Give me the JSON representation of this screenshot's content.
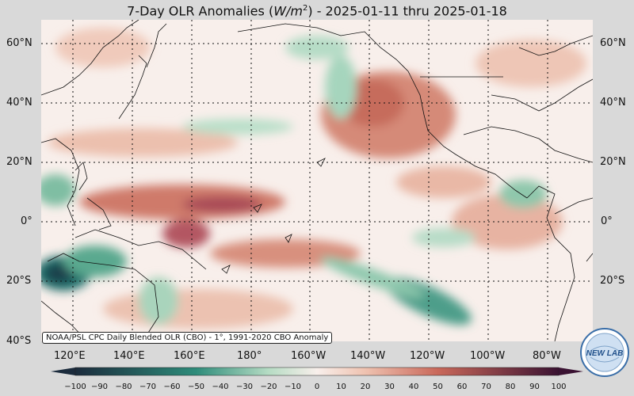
{
  "title": {
    "prefix": "7-Day OLR Anomalies (",
    "units_italic": "W/m",
    "units_sup": "2",
    "suffix": ") - 2025-01-11 thru 2025-01-18"
  },
  "map": {
    "lat_labels_left": [
      "60°N",
      "40°N",
      "20°N",
      "0°",
      "20°S",
      "40°S"
    ],
    "lat_labels_right": [
      "60°N",
      "40°N",
      "20°N",
      "0°",
      "20°S"
    ],
    "lon_labels": [
      "120°E",
      "140°E",
      "160°E",
      "180°",
      "160°W",
      "140°W",
      "120°W",
      "100°W",
      "80°W"
    ],
    "credit": "NOAA/PSL CPC Daily Blended OLR (CBO) - 1°, 1991-2020 CBO Anomaly",
    "logo_text": "NEW LAB"
  },
  "colorbar": {
    "tick_labels": [
      "−100",
      "−90",
      "−80",
      "−70",
      "−60",
      "−50",
      "−40",
      "−30",
      "−20",
      "−10",
      "0",
      "10",
      "20",
      "30",
      "40",
      "50",
      "60",
      "70",
      "80",
      "90",
      "100"
    ],
    "colors": {
      "neg_strong": "#1b2b3c",
      "neg_mid": "#2e8c7a",
      "neg_weak": "#b6dcc4",
      "neutral": "#f8efeb",
      "pos_weak": "#efc2b0",
      "pos_mid": "#c9685a",
      "pos_strong": "#3a1232"
    }
  }
}
